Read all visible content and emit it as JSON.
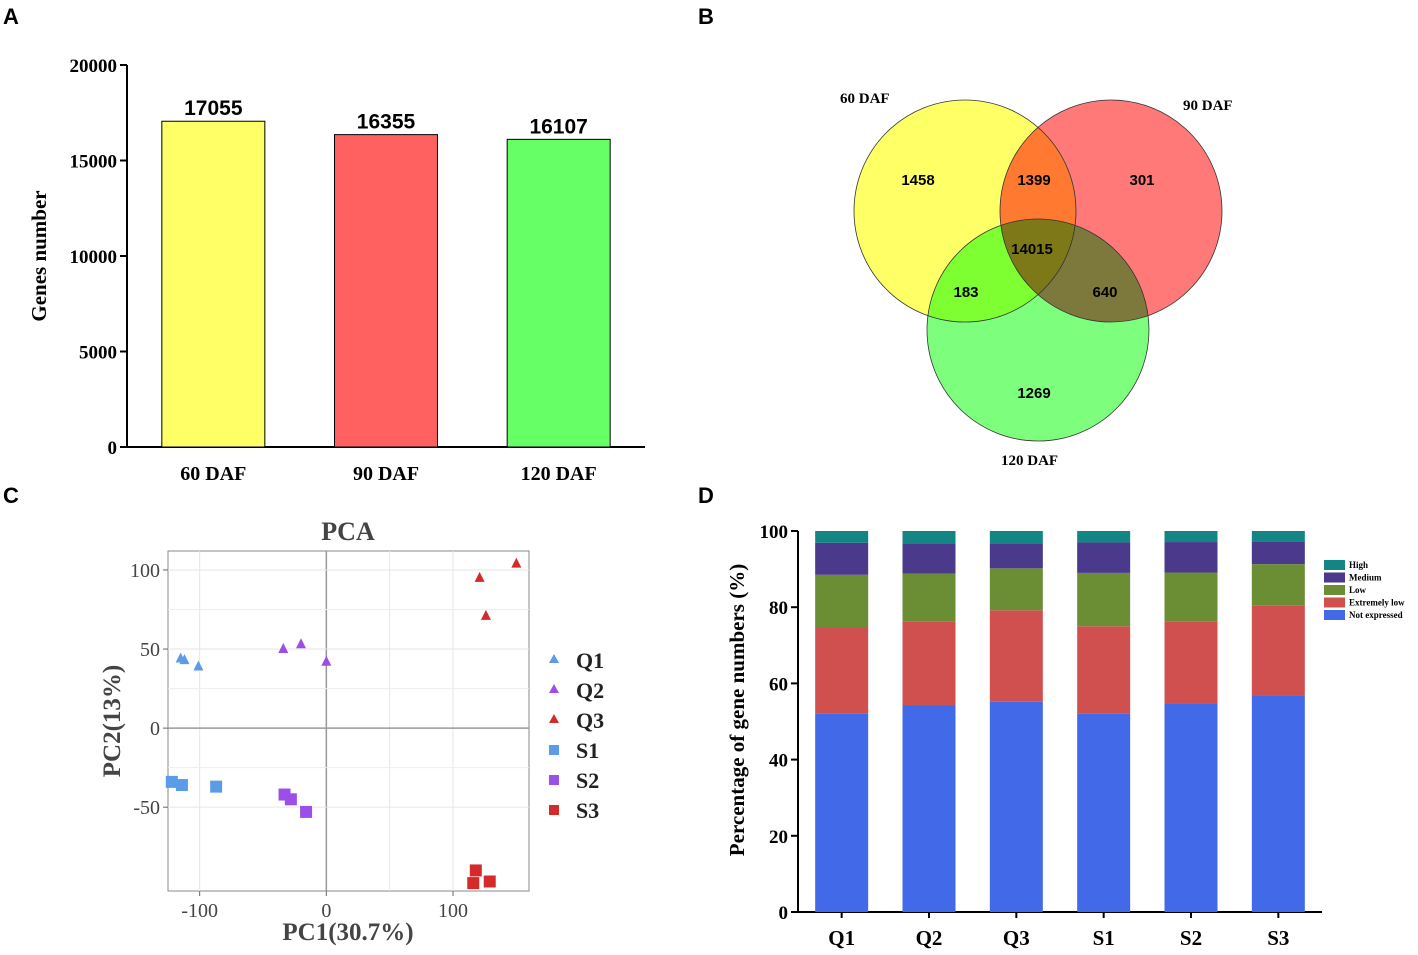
{
  "panels": {
    "A": "A",
    "B": "B",
    "C": "C",
    "D": "D"
  },
  "chart_data": [
    {
      "id": "A",
      "type": "bar",
      "title": "",
      "xlabel": "",
      "ylabel": "Genes number",
      "ylim": [
        0,
        20000
      ],
      "yticks": [
        0,
        5000,
        10000,
        15000,
        20000
      ],
      "categories": [
        "60 DAF",
        "90 DAF",
        "120 DAF"
      ],
      "values": [
        17055,
        16355,
        16107
      ],
      "data_labels": [
        "17055",
        "16355",
        "16107"
      ],
      "colors": [
        "#FFFF66",
        "#FF6161",
        "#66FF66"
      ]
    },
    {
      "id": "B",
      "type": "venn",
      "sets": [
        {
          "name": "60 DAF",
          "color": "#FFFF66"
        },
        {
          "name": "90 DAF",
          "color": "#FF6161"
        },
        {
          "name": "120 DAF",
          "color": "#66FF66"
        }
      ],
      "regions": [
        {
          "sets": [
            "60 DAF"
          ],
          "value": 1458
        },
        {
          "sets": [
            "90 DAF"
          ],
          "value": 301
        },
        {
          "sets": [
            "120 DAF"
          ],
          "value": 1269
        },
        {
          "sets": [
            "60 DAF",
            "90 DAF"
          ],
          "value": 1399
        },
        {
          "sets": [
            "60 DAF",
            "120 DAF"
          ],
          "value": 183
        },
        {
          "sets": [
            "90 DAF",
            "120 DAF"
          ],
          "value": 640
        },
        {
          "sets": [
            "60 DAF",
            "90 DAF",
            "120 DAF"
          ],
          "value": 14015
        }
      ]
    },
    {
      "id": "C",
      "type": "scatter",
      "title": "PCA",
      "xlabel": "PC1(30.7%)",
      "ylabel": "PC2(13%)",
      "xlim": [
        -125,
        160
      ],
      "ylim": [
        -103,
        112
      ],
      "xticks": [
        -100,
        0,
        100
      ],
      "yticks": [
        -50,
        0,
        50,
        100
      ],
      "series": [
        {
          "name": "Q1",
          "marker": "triangle",
          "color": "#5B9BE8",
          "points": [
            [
              -115,
              44
            ],
            [
              -112,
              43
            ],
            [
              -101,
              39
            ]
          ]
        },
        {
          "name": "Q2",
          "marker": "triangle",
          "color": "#9B4FE8",
          "points": [
            [
              -34,
              50
            ],
            [
              -20,
              53
            ],
            [
              0,
              42
            ]
          ]
        },
        {
          "name": "Q3",
          "marker": "triangle",
          "color": "#D42A2A",
          "points": [
            [
              121,
              95
            ],
            [
              150,
              104
            ],
            [
              126,
              71
            ]
          ]
        },
        {
          "name": "S1",
          "marker": "square",
          "color": "#5B9BE8",
          "points": [
            [
              -122,
              -34
            ],
            [
              -114,
              -36
            ],
            [
              -87,
              -37
            ]
          ]
        },
        {
          "name": "S2",
          "marker": "square",
          "color": "#9B4FE8",
          "points": [
            [
              -33,
              -42
            ],
            [
              -28,
              -45
            ],
            [
              -16,
              -53
            ]
          ]
        },
        {
          "name": "S3",
          "marker": "square",
          "color": "#D42A2A",
          "points": [
            [
              118,
              -90
            ],
            [
              116,
              -98
            ],
            [
              129,
              -97
            ]
          ]
        }
      ]
    },
    {
      "id": "D",
      "type": "stacked_bar",
      "title": "",
      "xlabel": "",
      "ylabel": "Percentage of gene numbers (%)",
      "ylim": [
        0,
        100
      ],
      "yticks": [
        0,
        20,
        40,
        60,
        80,
        100
      ],
      "categories": [
        "Q1",
        "Q2",
        "Q3",
        "S1",
        "S2",
        "S3"
      ],
      "series": [
        {
          "name": "Not expressed",
          "color": "#4169E8",
          "values": [
            52,
            54.2,
            55.2,
            52,
            54.6,
            56.7
          ]
        },
        {
          "name": "Extremely low",
          "color": "#D05050",
          "values": [
            22.8,
            22,
            24,
            23,
            21.6,
            23.8
          ]
        },
        {
          "name": "Low",
          "color": "#6B8E35",
          "values": [
            13.7,
            12.6,
            11,
            14,
            12.9,
            10.8
          ]
        },
        {
          "name": "Medium",
          "color": "#4B3A8C",
          "values": [
            8.4,
            8,
            6.6,
            8,
            8,
            6
          ]
        },
        {
          "name": "High",
          "color": "#148585",
          "values": [
            3.1,
            3.2,
            3.2,
            3,
            2.9,
            2.7
          ]
        }
      ],
      "legend_order": [
        "High",
        "Medium",
        "Low",
        "Extremely low",
        "Not expressed"
      ]
    }
  ]
}
